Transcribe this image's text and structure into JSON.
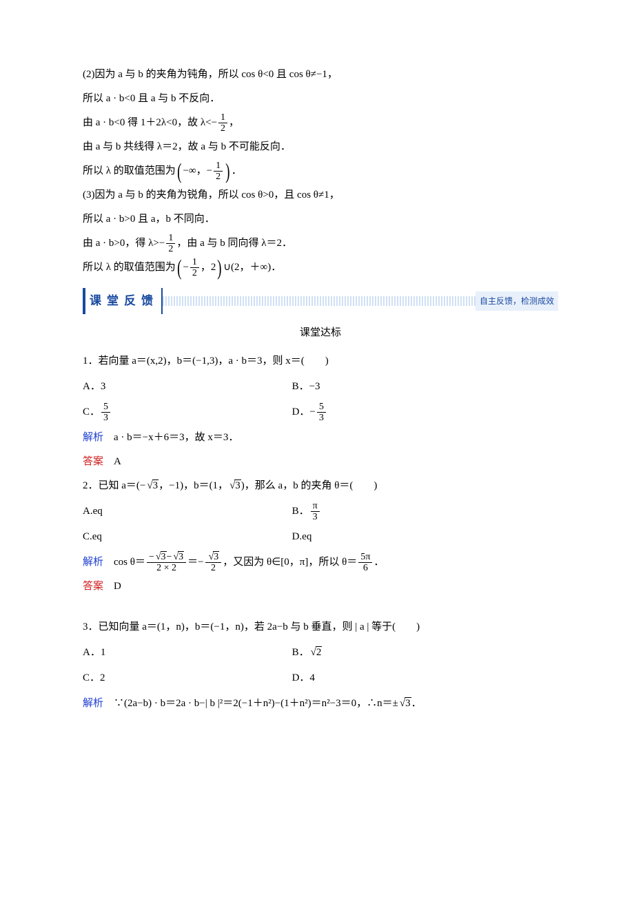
{
  "p2": {
    "l1": "(2)因为 a 与 b 的夹角为钝角，所以 cos θ<0 且 cos θ≠−1，",
    "l2": "所以 a · b<0 且 a 与 b 不反向．",
    "l3a": "由 a · b<0 得 1＋2λ<0，故 λ<−",
    "l3b": "，",
    "l4": "由 a 与 b 共线得 λ＝2，故 a 与 b 不可能反向．",
    "l5a": "所以 λ 的取值范围为",
    "l5b": "−∞，−",
    "l5c": "．"
  },
  "p3": {
    "l1": "(3)因为 a 与 b 的夹角为锐角，所以 cos θ>0，且 cos θ≠1，",
    "l2": "所以 a · b>0 且 a，b 不同向．",
    "l3a": "由 a · b>0，得 λ>−",
    "l3b": "，由 a 与 b 同向得 λ＝2．",
    "l4a": "所以 λ 的取值范围为",
    "l4b": "−",
    "l4c": "，2",
    "l4d": "∪(2，＋∞)．"
  },
  "section": {
    "label": "课堂反馈",
    "tail": "自主反馈，检测成效"
  },
  "subtitle": "课堂达标",
  "q1": {
    "stem": "1．若向量 a＝(x,2)，b＝(−1,3)，a · b＝3，则 x＝(　　)",
    "a": "A．3",
    "b": "B．−3",
    "c": "C．",
    "d": "D．−",
    "sol_label": "解析",
    "sol": "　a · b＝−x＋6＝3，故 x＝3．",
    "ans_label": "答案",
    "ans": "　A"
  },
  "q2": {
    "stem_a": "2．已知 a＝(−",
    "stem_b": "，−1)，b＝(1，",
    "stem_c": ")，那么 a，b 的夹角 θ＝(　　)",
    "a": "A.eq",
    "b": "B．",
    "c": "C.eq",
    "d": "D.eq",
    "sol_label": "解析",
    "sol_a": "　cos θ＝",
    "sol_b": "＝−",
    "sol_c": "，又因为 θ∈[0，π]，所以 θ＝",
    "sol_d": "．",
    "ans_label": "答案",
    "ans": "　D"
  },
  "q3": {
    "stem": "3．已知向量 a＝(1，n)，b＝(−1，n)，若 2a−b 与 b 垂直，则 | a | 等于(　　)",
    "a": "A．1",
    "b": "B．",
    "c": "C．2",
    "d": "D．4",
    "sol_label": "解析",
    "sol_a": "　∵(2a−b) · b＝2a · b−| b |²＝2(−1＋n²)−(1＋n²)＝n²−3＝0，∴n＝±",
    "sol_b": "．"
  },
  "fracs": {
    "half_n": "1",
    "half_d": "2",
    "f53_n": "5",
    "f53_d": "3",
    "pi3_n": "π",
    "pi3_d": "3",
    "fp56_n": "5π",
    "fp56_d": "6",
    "two_two": "2 × 2",
    "sqrt3": "3",
    "sqrt2": "2"
  },
  "colors": {
    "blue": "#2040d0",
    "red": "#d02020",
    "accent": "#1a4aa0",
    "stripe": "#cfe0f5",
    "bg": "#ffffff"
  }
}
